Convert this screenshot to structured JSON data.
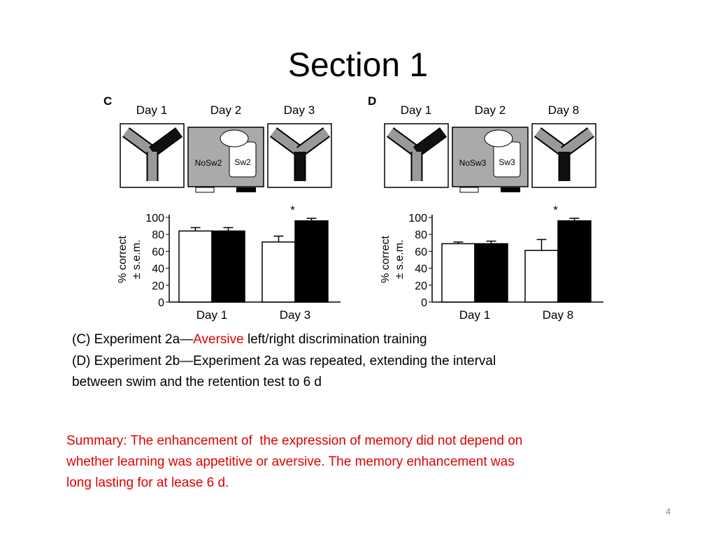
{
  "title": "Section 1",
  "panels": [
    {
      "letter": "C",
      "days": [
        "Day 1",
        "Day 2",
        "Day 3"
      ],
      "no_swim": "NoSw2",
      "swim": "Sw2"
    },
    {
      "letter": "D",
      "days": [
        "Day 1",
        "Day 2",
        "Day 8"
      ],
      "no_swim": "NoSw3",
      "swim": "Sw3"
    }
  ],
  "chart_data": [
    {
      "type": "bar",
      "categories": [
        "Day 1",
        "Day 3"
      ],
      "ylabel": [
        "% correct",
        "± s.e.m."
      ],
      "ylim": [
        0,
        100
      ],
      "yticks": [
        0,
        20,
        40,
        60,
        80,
        100
      ],
      "annotation": "*",
      "series": [
        {
          "color": "#ffffff",
          "values": [
            84,
            71
          ],
          "errors": [
            4,
            7
          ]
        },
        {
          "color": "#000000",
          "values": [
            84,
            96
          ],
          "errors": [
            4,
            3
          ]
        }
      ]
    },
    {
      "type": "bar",
      "categories": [
        "Day 1",
        "Day 8"
      ],
      "ylabel": [
        "% correct",
        "± s.e.m."
      ],
      "ylim": [
        0,
        100
      ],
      "yticks": [
        0,
        20,
        40,
        60,
        80,
        100
      ],
      "annotation": "*",
      "series": [
        {
          "color": "#ffffff",
          "values": [
            69,
            61
          ],
          "errors": [
            2,
            13
          ]
        },
        {
          "color": "#000000",
          "values": [
            69,
            96
          ],
          "errors": [
            3,
            3
          ]
        }
      ]
    }
  ],
  "caption": {
    "c_prefix": "(C) Experiment 2a—",
    "c_highlight": "Aversive",
    "c_suffix": " left/right discrimination training",
    "d_line1": "(D) Experiment 2b—Experiment 2a was repeated, extending the interval",
    "d_line2": "between swim and the retention test to 6 d"
  },
  "summary": [
    "Summary: The enhancement of  the expression of memory did not depend on",
    "whether learning was appetitive or aversive. The memory enhancement was",
    "long lasting for at lease 6 d."
  ],
  "page_number": "4"
}
